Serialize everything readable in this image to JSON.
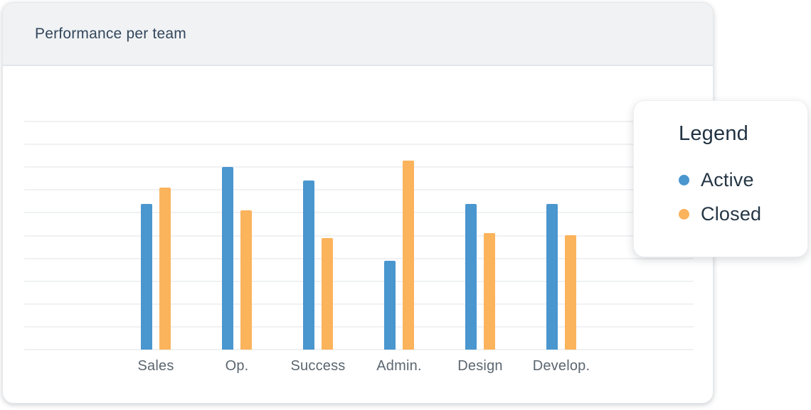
{
  "card": {
    "title": "Performance per team"
  },
  "legend": {
    "title": "Legend",
    "items": [
      {
        "label": "Active",
        "color": "#4a96cf"
      },
      {
        "label": "Closed",
        "color": "#fbb35c"
      }
    ]
  },
  "chart_data": {
    "type": "bar",
    "title": "Performance per team",
    "categories": [
      "Sales",
      "Op.",
      "Success",
      "Admin.",
      "Design",
      "Develop."
    ],
    "series": [
      {
        "name": "Active",
        "color": "#4a96cf",
        "values": [
          64,
          80,
          74,
          39,
          64,
          64
        ]
      },
      {
        "name": "Closed",
        "color": "#fbb35c",
        "values": [
          71,
          61,
          49,
          83,
          51,
          50
        ]
      }
    ],
    "xlabel": "",
    "ylabel": "",
    "ylim": [
      0,
      100
    ],
    "grid": true,
    "gridline_count": 10,
    "y_axis_labels_visible": false,
    "legend_position": "right-overlay"
  },
  "colors": {
    "header_bg": "#f0f2f4",
    "card_title_text": "#33475b",
    "axis_label_text": "#5b6670",
    "gridline": "#f0f1f3"
  }
}
